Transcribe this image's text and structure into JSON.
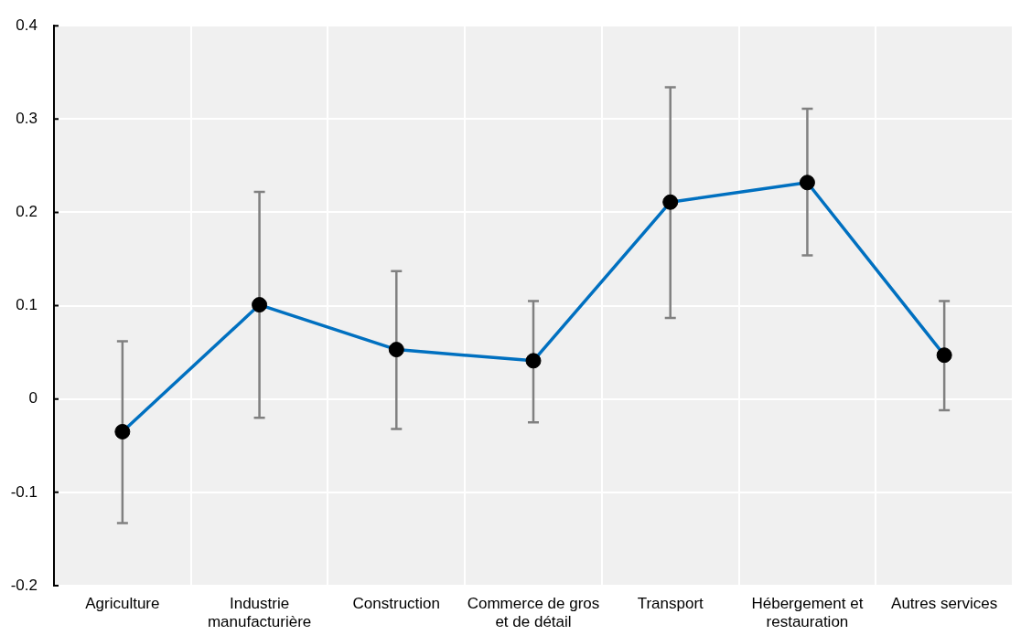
{
  "chart_data": {
    "type": "line",
    "categories": [
      "Agriculture",
      "Industrie manufacturière",
      "Construction",
      "Commerce de gros et de détail",
      "Transport",
      "Hébergement et restauration",
      "Autres services"
    ],
    "values": [
      -0.035,
      0.101,
      0.053,
      0.041,
      0.211,
      0.232,
      0.047
    ],
    "errors": [
      [
        -0.133,
        0.062
      ],
      [
        -0.02,
        0.222
      ],
      [
        -0.032,
        0.137
      ],
      [
        -0.025,
        0.105
      ],
      [
        0.087,
        0.334
      ],
      [
        0.154,
        0.311
      ],
      [
        -0.012,
        0.105
      ]
    ],
    "color": "#0070c0",
    "ylim": [
      -0.2,
      0.4
    ],
    "yticks": [
      -0.2,
      -0.1,
      0,
      0.1,
      0.2,
      0.3,
      0.4
    ],
    "grid": true,
    "marker": "circle",
    "line_style": "solid"
  }
}
